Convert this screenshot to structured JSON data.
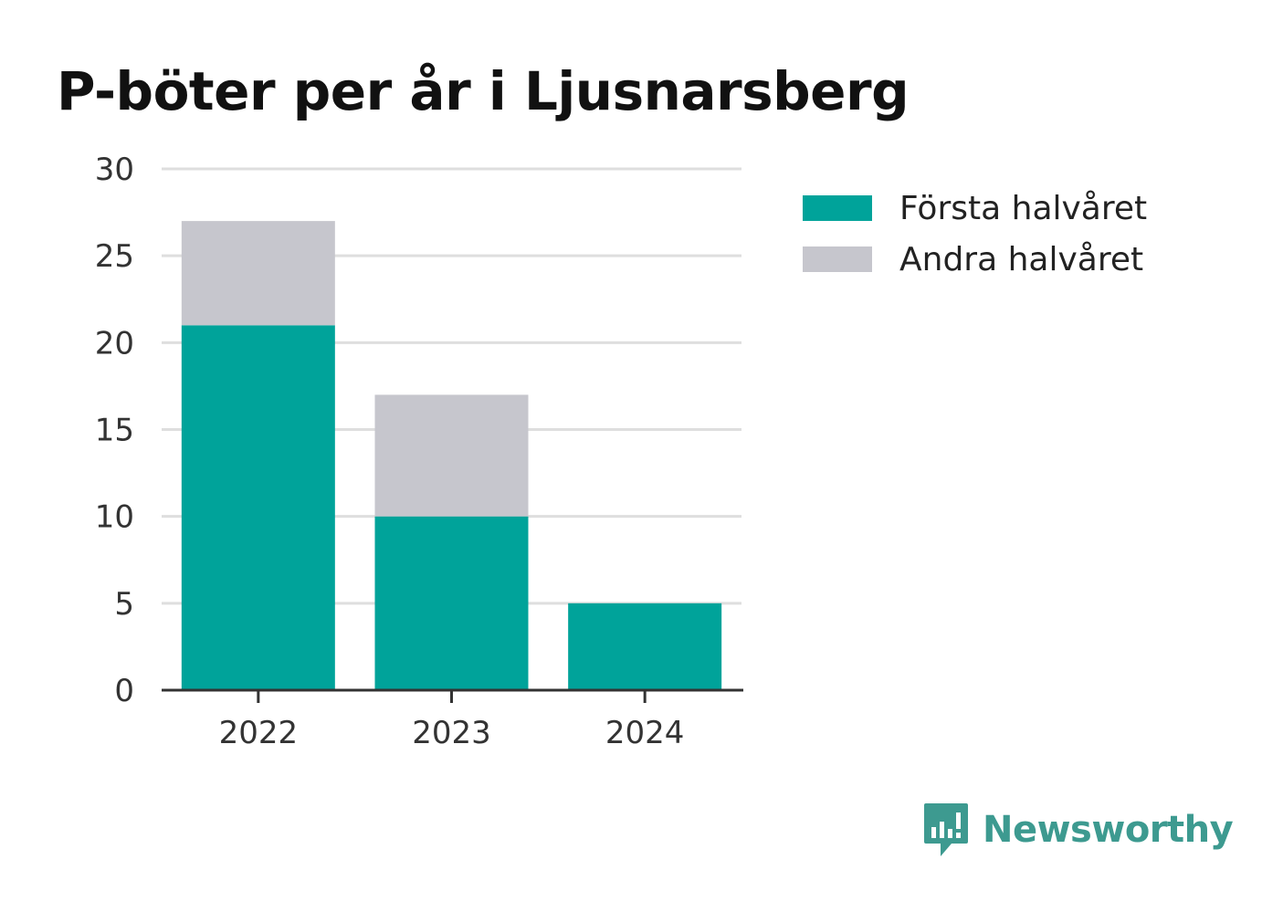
{
  "chart_data": {
    "type": "bar",
    "stacked": true,
    "title": "P-böter per år i Ljusnarsberg",
    "categories": [
      "2022",
      "2023",
      "2024"
    ],
    "series": [
      {
        "name": "Första halvåret",
        "values": [
          21,
          10,
          5
        ],
        "color": "#00a39a"
      },
      {
        "name": "Andra halvåret",
        "values": [
          6,
          7,
          0
        ],
        "color": "#c6c6cd"
      }
    ],
    "ylim": [
      0,
      30
    ],
    "yticks": [
      "0",
      "5",
      "10",
      "15",
      "20",
      "25",
      "30"
    ],
    "grid": true,
    "legend_position": "right"
  },
  "branding": {
    "name": "Newsworthy",
    "color": "#3d9a90",
    "icon": "bar-chart-speech-bubble-icon"
  }
}
